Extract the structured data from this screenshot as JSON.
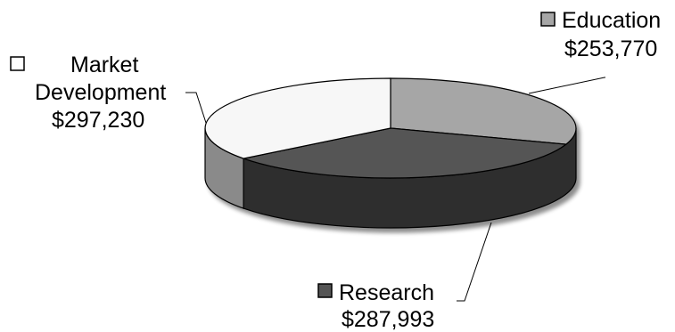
{
  "chart_data": {
    "type": "pie",
    "style": "3d",
    "title": "",
    "legend": "none",
    "slices": [
      {
        "name": "Education",
        "value": 253770,
        "value_label": "$253,770",
        "color": "#a6a6a6",
        "side_color": "#7f7f7f"
      },
      {
        "name": "Research",
        "value": 287993,
        "value_label": "$287,993",
        "color": "#555555",
        "side_color": "#2d2d2d"
      },
      {
        "name_lines": [
          "Market",
          "Development"
        ],
        "value": 297230,
        "value_label": "$297,230",
        "color": "#f7f7f7",
        "side_color": "#8a8a8a"
      }
    ]
  }
}
